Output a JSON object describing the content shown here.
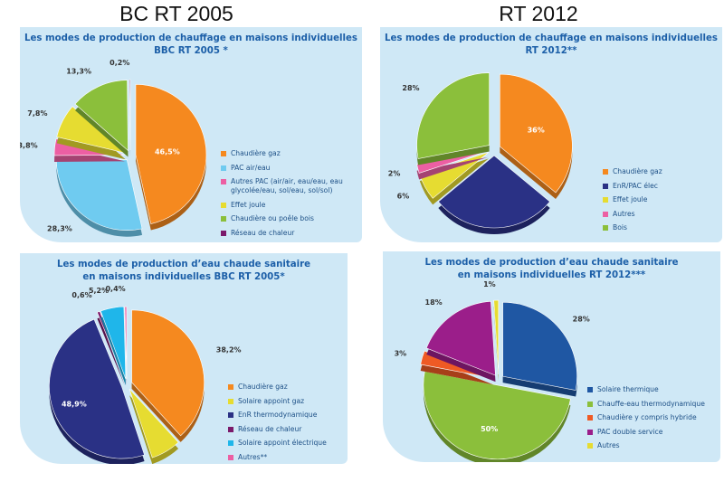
{
  "headers": {
    "left": "BC RT 2005",
    "right": "RT 2012"
  },
  "colors": {
    "orange": "#f5891f",
    "lightblue": "#6fcbf0",
    "pink": "#ec5fa3",
    "yellow": "#e6dc31",
    "green": "#8bbf3b",
    "purple": "#7b1a6b",
    "navy": "#2a3185",
    "blue": "#1f57a3",
    "cyan": "#1fb6ea",
    "orangered": "#ef5a24",
    "magenta": "#9b1e8a"
  },
  "chart_data": [
    {
      "type": "pie",
      "title": "Les modes de production de chauffage en maisons individuelles\nBBC RT 2005 *",
      "series": [
        {
          "name": "Chaudière gaz",
          "value": 46.5,
          "label": "46,5%",
          "color": "#f5891f"
        },
        {
          "name": "PAC air/eau",
          "value": 28.3,
          "label": "28,3%",
          "color": "#6fcbf0"
        },
        {
          "name": "Autres PAC (air/air, eau/eau, eau\nglycolée/eau, sol/eau, sol/sol)",
          "value": 3.8,
          "label": "3,8%",
          "color": "#ec5fa3"
        },
        {
          "name": "Effet joule",
          "value": 7.8,
          "label": "7,8%",
          "color": "#e6dc31"
        },
        {
          "name": "Chaudière ou poêle bois",
          "value": 13.3,
          "label": "13,3%",
          "color": "#8bbf3b"
        },
        {
          "name": "Réseau de chaleur",
          "value": 0.2,
          "label": "0,2%",
          "color": "#7b1a6b"
        }
      ]
    },
    {
      "type": "pie",
      "title": "Les modes de production de chauffage en maisons individuelles\nRT 2012**",
      "series": [
        {
          "name": "Chaudière gaz",
          "value": 36,
          "label": "36%",
          "color": "#f5891f"
        },
        {
          "name": "EnR/PAC élec",
          "value": 28,
          "label": "28%",
          "color": "#2a3185"
        },
        {
          "name": "Effet joule",
          "value": 6,
          "label": "6%",
          "color": "#e6dc31"
        },
        {
          "name": "Autres",
          "value": 2,
          "label": "2%",
          "color": "#ec5fa3"
        },
        {
          "name": "Bois",
          "value": 28,
          "label": "28%",
          "color": "#8bbf3b"
        }
      ]
    },
    {
      "type": "pie",
      "title": "Les modes de production d’eau chaude sanitaire\nen maisons individuelles BBC RT 2005*",
      "series": [
        {
          "name": "Chaudière gaz",
          "value": 38.2,
          "label": "38,2%",
          "color": "#f5891f"
        },
        {
          "name": "Solaire appoint gaz",
          "value": 6.7,
          "label": "6,7%",
          "color": "#e6dc31"
        },
        {
          "name": "EnR thermodynamique",
          "value": 48.9,
          "label": "48,9%",
          "color": "#2a3185"
        },
        {
          "name": "Réseau de chaleur",
          "value": 0.6,
          "label": "0,6%",
          "color": "#7b1a6b"
        },
        {
          "name": "Solaire appoint électrique",
          "value": 5.2,
          "label": "5,2%",
          "color": "#1fb6ea"
        },
        {
          "name": "Autres**",
          "value": 0.4,
          "label": "0,4%",
          "color": "#ec5fa3"
        }
      ]
    },
    {
      "type": "pie",
      "title": "Les modes de production d’eau chaude sanitaire\nen maisons individuelles RT 2012***",
      "series": [
        {
          "name": "Solaire thermique",
          "value": 28,
          "label": "28%",
          "color": "#1f57a3"
        },
        {
          "name": "Chauffe-eau thermodynamique",
          "value": 50,
          "label": "50%",
          "color": "#8bbf3b"
        },
        {
          "name": "Chaudière y compris hybride",
          "value": 3,
          "label": "3%",
          "color": "#ef5a24"
        },
        {
          "name": "PAC double service",
          "value": 18,
          "label": "18%",
          "color": "#9b1e8a"
        },
        {
          "name": "Autres",
          "value": 1,
          "label": "1%",
          "color": "#e6dc31"
        }
      ]
    }
  ]
}
